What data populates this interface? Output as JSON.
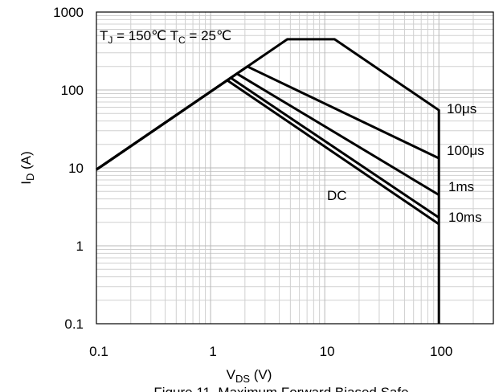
{
  "chart_data": {
    "type": "line",
    "annotation": [
      "T",
      "J",
      " = 150℃ ",
      "T",
      "C",
      " = 25℃"
    ],
    "x_label": [
      "V",
      "DS",
      " (V)"
    ],
    "y_label": [
      "I",
      "D",
      " (A)"
    ],
    "caption": "Figure 11. Maximum Forward Biased Safe",
    "log_x": true,
    "log_y": true,
    "grid": true,
    "xlim": [
      0.1,
      300
    ],
    "xticks": [
      0.1,
      1,
      10,
      100
    ],
    "ylim": [
      0.1,
      1000
    ],
    "yticks": [
      0.1,
      1,
      10,
      100,
      1000
    ],
    "series": [
      {
        "name": "10μs",
        "color": "#000000",
        "x": [
          0.1,
          4.7,
          12.2,
          100,
          100
        ],
        "values": [
          9.5,
          447,
          447,
          55,
          0.1
        ]
      },
      {
        "name": "100μs",
        "color": "#000000",
        "x": [
          0.1,
          2.1,
          100
        ],
        "values": [
          9.5,
          200,
          13.3
        ]
      },
      {
        "name": "1ms",
        "color": "#000000",
        "x": [
          0.1,
          1.7,
          100
        ],
        "values": [
          9.5,
          162,
          4.5
        ]
      },
      {
        "name": "10ms",
        "color": "#000000",
        "x": [
          0.1,
          1.5,
          100
        ],
        "values": [
          9.5,
          143,
          2.3
        ]
      },
      {
        "name": "DC",
        "color": "#000000",
        "x": [
          0.1,
          1.4,
          100
        ],
        "values": [
          9.5,
          133,
          1.9
        ]
      }
    ]
  }
}
